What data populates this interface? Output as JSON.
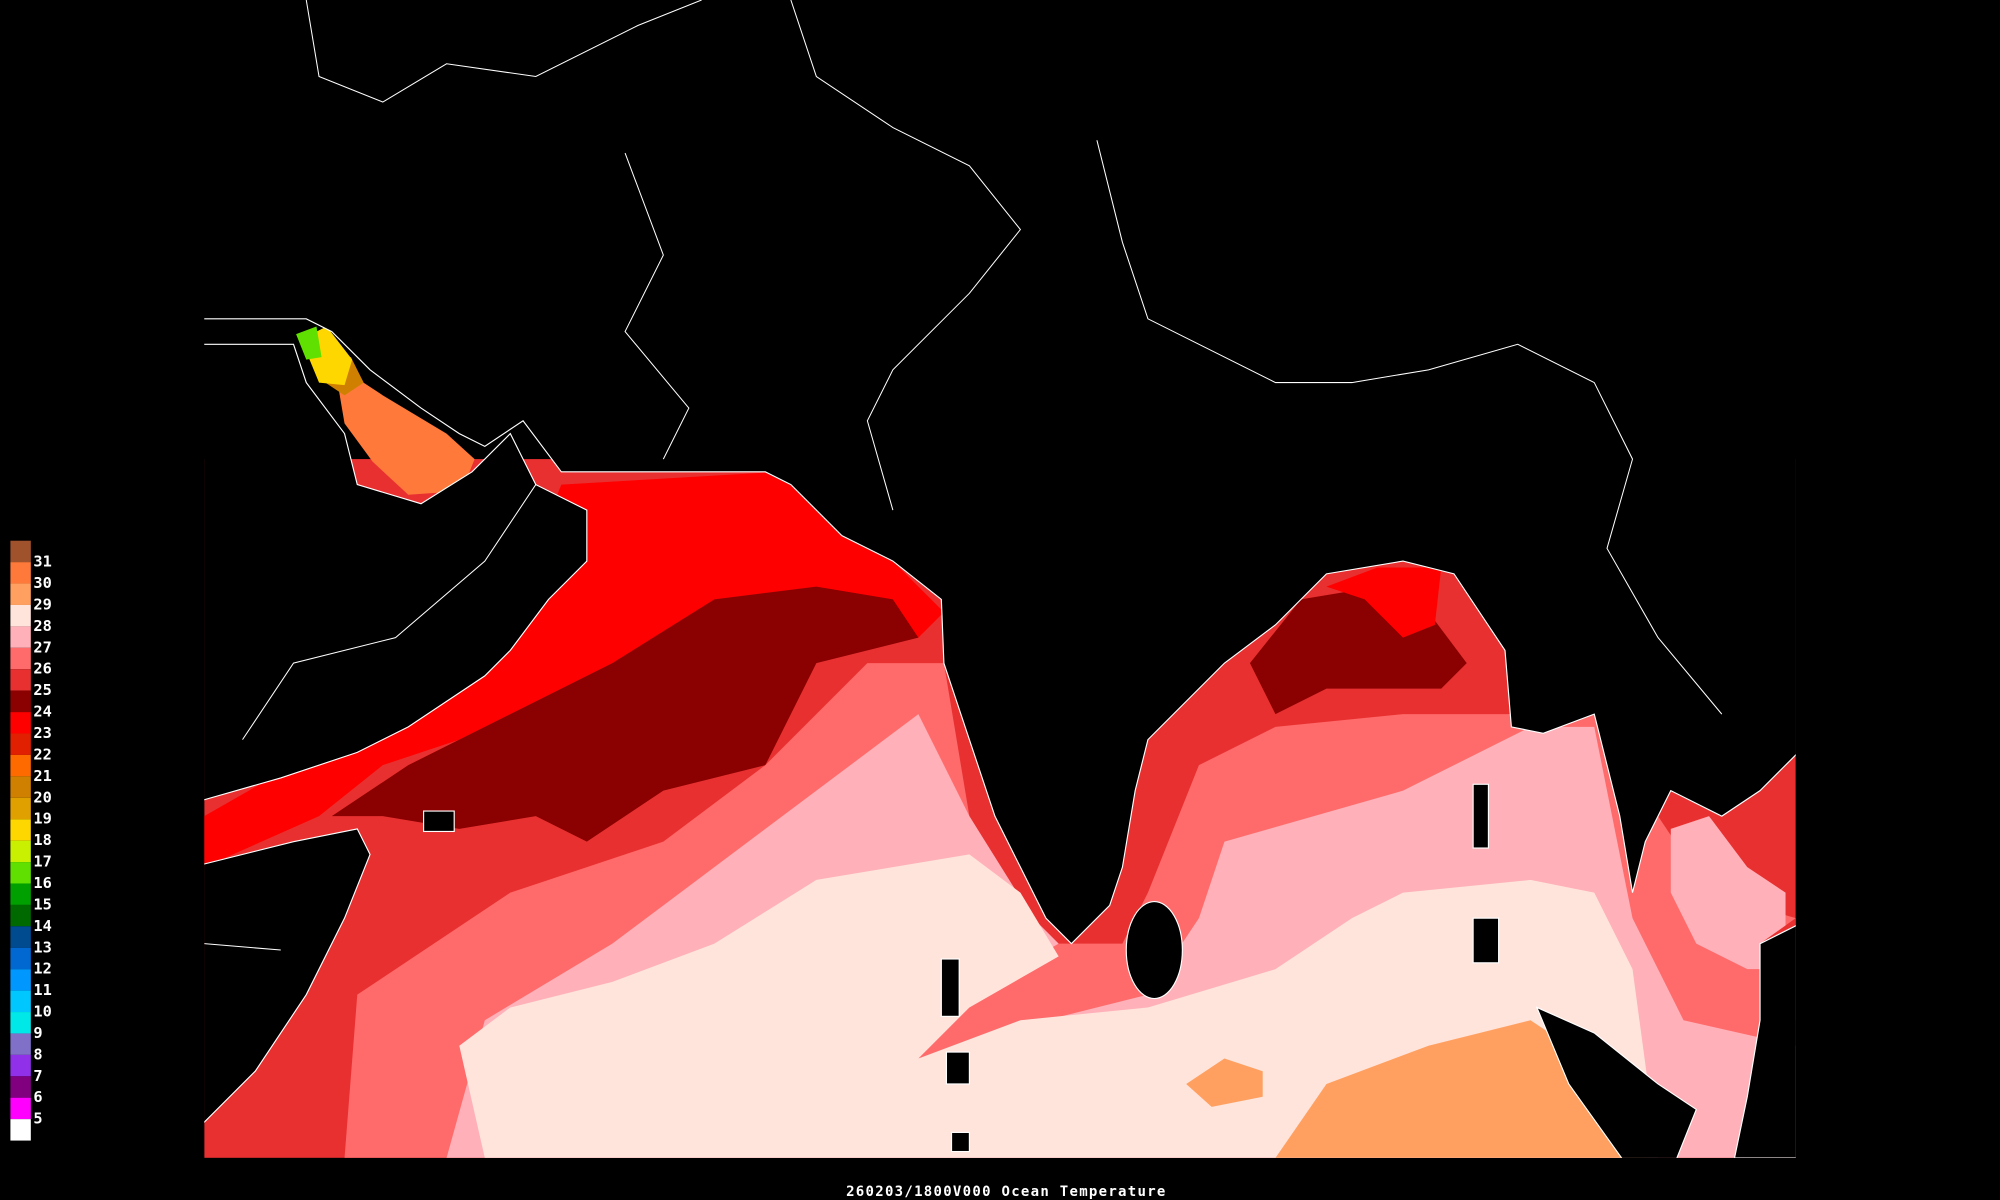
{
  "legend": {
    "items": [
      {
        "label": "31",
        "color": "#a0522d"
      },
      {
        "label": "30",
        "color": "#ff7a3a"
      },
      {
        "label": "29",
        "color": "#ffa060"
      },
      {
        "label": "28",
        "color": "#ffe4dc"
      },
      {
        "label": "27",
        "color": "#ffb0b8"
      },
      {
        "label": "26",
        "color": "#ff6a6a"
      },
      {
        "label": "25",
        "color": "#e83030"
      },
      {
        "label": "24",
        "color": "#8b0000"
      },
      {
        "label": "23",
        "color": "#ff0000"
      },
      {
        "label": "22",
        "color": "#e02000"
      },
      {
        "label": "21",
        "color": "#ff6a00"
      },
      {
        "label": "20",
        "color": "#d08000"
      },
      {
        "label": "19",
        "color": "#e0a000"
      },
      {
        "label": "18",
        "color": "#ffd700"
      },
      {
        "label": "17",
        "color": "#c8f000"
      },
      {
        "label": "16",
        "color": "#60e000"
      },
      {
        "label": "15",
        "color": "#00a000"
      },
      {
        "label": "14",
        "color": "#006a00"
      },
      {
        "label": "13",
        "color": "#004a90"
      },
      {
        "label": "12",
        "color": "#0068d0"
      },
      {
        "label": "11",
        "color": "#0098ff"
      },
      {
        "label": "10",
        "color": "#00c8ff"
      },
      {
        "label": "9",
        "color": "#00e8e8"
      },
      {
        "label": "8",
        "color": "#8070c8"
      },
      {
        "label": "7",
        "color": "#9030e8"
      },
      {
        "label": "6",
        "color": "#800080"
      },
      {
        "label": "5",
        "color": "#ff00ff"
      }
    ],
    "bottom_color": "#ffffff"
  },
  "caption": "260203/1800V000 Ocean Temperature"
}
